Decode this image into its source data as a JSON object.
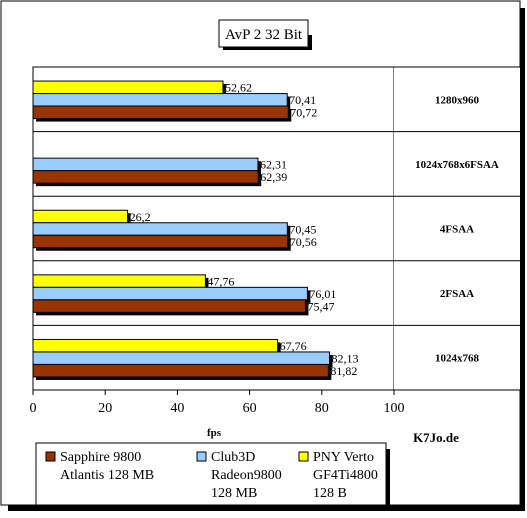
{
  "chart_data": {
    "type": "bar",
    "orientation": "horizontal",
    "title": "AvP 2 32 Bit",
    "xlabel": "fps",
    "ylabel": "",
    "xlim": [
      0,
      100
    ],
    "xticks": [
      0,
      20,
      40,
      60,
      80,
      100
    ],
    "categories": [
      "1280x960",
      "1024x768x6FSAA",
      "4FSAA",
      "2FSAA",
      "1024x768"
    ],
    "series": [
      {
        "name": "Sapphire 9800 Atlantis 128 MB",
        "legend_lines": [
          "Sapphire 9800",
          "Atlantis 128 MB"
        ],
        "color": "#993300",
        "values": [
          70.72,
          62.39,
          70.56,
          75.47,
          81.82
        ],
        "labels": [
          "70,72",
          "62,39",
          "70,56",
          "75,47",
          "81,82"
        ]
      },
      {
        "name": "Club3D Radeon9800 128 MB",
        "legend_lines": [
          "Club3D",
          "Radeon9800",
          "128 MB"
        ],
        "color": "#99ccff",
        "values": [
          70.41,
          62.31,
          70.45,
          76.01,
          82.13
        ],
        "labels": [
          "70,41",
          "62,31",
          "70,45",
          "76,01",
          "82,13"
        ]
      },
      {
        "name": "PNY Verto GF4Ti4800 128 B",
        "legend_lines": [
          "PNY Verto",
          "GF4Ti4800",
          "128 B"
        ],
        "color": "#ffff00",
        "values": [
          52.62,
          null,
          26.2,
          47.76,
          67.76
        ],
        "labels": [
          "52,62",
          "",
          "26,2",
          "47,76",
          "67,76"
        ]
      }
    ],
    "grid": false,
    "legend_position": "bottom",
    "annotation": "K7Jo.de"
  }
}
